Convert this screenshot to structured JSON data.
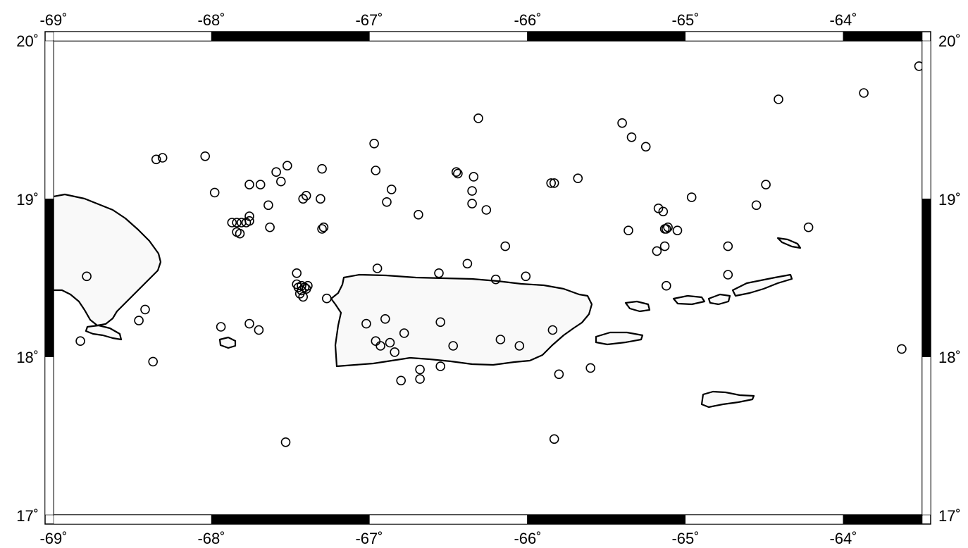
{
  "map": {
    "lon_range": [
      -69,
      -63.5
    ],
    "lat_range": [
      17,
      20
    ],
    "longitude_ticks": [
      -69,
      -68,
      -67,
      -66,
      -65,
      -64
    ],
    "latitude_ticks": [
      17,
      18,
      19,
      20
    ],
    "x_tick_labels": [
      "-69˚",
      "-68˚",
      "-67˚",
      "-66˚",
      "-65˚",
      "-64˚"
    ],
    "y_tick_labels": [
      "17˚",
      "18˚",
      "19˚",
      "20˚"
    ],
    "frame": "checkerboard",
    "land_fill": "#f9f9f9",
    "coastline_color": "#000000",
    "marker": "open-circle"
  },
  "chart_data": {
    "type": "scatter",
    "x": [
      -69,
      -63.5
    ],
    "points": [
      [
        -63.52,
        19.84
      ],
      [
        -63.87,
        19.67
      ],
      [
        -64.41,
        19.63
      ],
      [
        -66.31,
        19.51
      ],
      [
        -65.4,
        19.48
      ],
      [
        -65.34,
        19.39
      ],
      [
        -65.25,
        19.33
      ],
      [
        -66.97,
        19.35
      ],
      [
        -68.35,
        19.25
      ],
      [
        -68.31,
        19.26
      ],
      [
        -68.04,
        19.27
      ],
      [
        -67.52,
        19.21
      ],
      [
        -67.3,
        19.19
      ],
      [
        -66.96,
        19.18
      ],
      [
        -66.45,
        19.17
      ],
      [
        -66.44,
        19.16
      ],
      [
        -66.34,
        19.14
      ],
      [
        -67.59,
        19.17
      ],
      [
        -67.56,
        19.11
      ],
      [
        -65.68,
        19.13
      ],
      [
        -65.83,
        19.1
      ],
      [
        -65.85,
        19.1
      ],
      [
        -64.49,
        19.09
      ],
      [
        -67.76,
        19.09
      ],
      [
        -67.69,
        19.09
      ],
      [
        -66.86,
        19.06
      ],
      [
        -66.35,
        19.05
      ],
      [
        -67.98,
        19.04
      ],
      [
        -67.4,
        19.02
      ],
      [
        -67.42,
        19.0
      ],
      [
        -67.31,
        19.0
      ],
      [
        -66.89,
        18.98
      ],
      [
        -66.35,
        18.97
      ],
      [
        -66.26,
        18.93
      ],
      [
        -64.96,
        19.01
      ],
      [
        -64.55,
        18.96
      ],
      [
        -65.17,
        18.94
      ],
      [
        -65.14,
        18.92
      ],
      [
        -67.64,
        18.96
      ],
      [
        -67.76,
        18.89
      ],
      [
        -66.69,
        18.9
      ],
      [
        -67.76,
        18.86
      ],
      [
        -67.78,
        18.85
      ],
      [
        -67.81,
        18.85
      ],
      [
        -67.84,
        18.85
      ],
      [
        -67.87,
        18.85
      ],
      [
        -67.84,
        18.79
      ],
      [
        -67.82,
        18.78
      ],
      [
        -67.63,
        18.82
      ],
      [
        -67.29,
        18.82
      ],
      [
        -67.3,
        18.81
      ],
      [
        -65.36,
        18.8
      ],
      [
        -65.13,
        18.81
      ],
      [
        -65.12,
        18.81
      ],
      [
        -65.11,
        18.82
      ],
      [
        -65.05,
        18.8
      ],
      [
        -64.22,
        18.82
      ],
      [
        -64.73,
        18.7
      ],
      [
        -65.13,
        18.7
      ],
      [
        -65.18,
        18.67
      ],
      [
        -66.14,
        18.7
      ],
      [
        -66.95,
        18.56
      ],
      [
        -66.38,
        18.59
      ],
      [
        -66.56,
        18.53
      ],
      [
        -66.01,
        18.51
      ],
      [
        -66.2,
        18.49
      ],
      [
        -64.73,
        18.52
      ],
      [
        -65.12,
        18.45
      ],
      [
        -67.46,
        18.53
      ],
      [
        -67.46,
        18.46
      ],
      [
        -67.45,
        18.44
      ],
      [
        -67.43,
        18.45
      ],
      [
        -67.41,
        18.44
      ],
      [
        -67.4,
        18.43
      ],
      [
        -67.39,
        18.45
      ],
      [
        -67.43,
        18.42
      ],
      [
        -67.44,
        18.4
      ],
      [
        -67.42,
        18.38
      ],
      [
        -67.27,
        18.37
      ],
      [
        -68.79,
        18.51
      ],
      [
        -68.42,
        18.3
      ],
      [
        -68.46,
        18.23
      ],
      [
        -68.83,
        18.1
      ],
      [
        -68.37,
        17.97
      ],
      [
        -67.94,
        18.19
      ],
      [
        -67.76,
        18.21
      ],
      [
        -67.7,
        18.17
      ],
      [
        -67.02,
        18.21
      ],
      [
        -66.9,
        18.24
      ],
      [
        -66.78,
        18.15
      ],
      [
        -66.55,
        18.22
      ],
      [
        -66.96,
        18.1
      ],
      [
        -66.93,
        18.07
      ],
      [
        -66.87,
        18.09
      ],
      [
        -66.84,
        18.03
      ],
      [
        -66.47,
        18.07
      ],
      [
        -66.17,
        18.11
      ],
      [
        -66.05,
        18.07
      ],
      [
        -65.84,
        18.17
      ],
      [
        -66.68,
        17.92
      ],
      [
        -66.68,
        17.86
      ],
      [
        -66.55,
        17.94
      ],
      [
        -66.8,
        17.85
      ],
      [
        -65.8,
        17.89
      ],
      [
        -65.6,
        17.93
      ],
      [
        -63.63,
        18.05
      ],
      [
        -67.53,
        17.46
      ],
      [
        -65.83,
        17.48
      ]
    ]
  }
}
